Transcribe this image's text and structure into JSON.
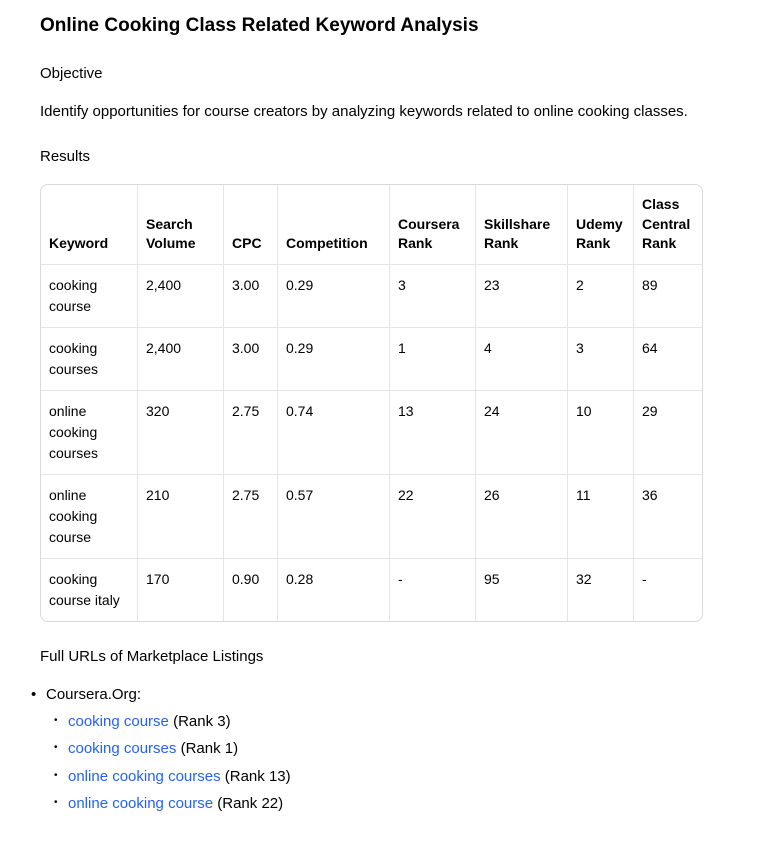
{
  "page_title": "Online Cooking Class Related Keyword Analysis",
  "objective_heading": "Objective",
  "objective_text": "Identify opportunities for course creators by analyzing keywords related to online cooking classes.",
  "results_heading": "Results",
  "table": {
    "columns": [
      "Keyword",
      "Search Volume",
      "CPC",
      "Competition",
      "Coursera Rank",
      "Skillshare Rank",
      "Udemy Rank",
      "Class Central Rank"
    ],
    "rows": [
      [
        "cooking course",
        "2,400",
        "3.00",
        "0.29",
        "3",
        "23",
        "2",
        "89"
      ],
      [
        "cooking courses",
        "2,400",
        "3.00",
        "0.29",
        "1",
        "4",
        "3",
        "64"
      ],
      [
        "online cooking courses",
        "320",
        "2.75",
        "0.74",
        "13",
        "24",
        "10",
        "29"
      ],
      [
        "online cooking course",
        "210",
        "2.75",
        "0.57",
        "22",
        "26",
        "11",
        "36"
      ],
      [
        "cooking course italy",
        "170",
        "0.90",
        "0.28",
        "-",
        "95",
        "32",
        "-"
      ]
    ]
  },
  "urls_heading": "Full URLs of Marketplace Listings",
  "listings": {
    "site_label": "Coursera.Org:",
    "items": [
      {
        "link": "cooking course",
        "suffix": " (Rank 3)"
      },
      {
        "link": "cooking courses",
        "suffix": " (Rank 1)"
      },
      {
        "link": "online cooking courses",
        "suffix": " (Rank 13)"
      },
      {
        "link": "online cooking course",
        "suffix": " (Rank 22)"
      }
    ]
  }
}
